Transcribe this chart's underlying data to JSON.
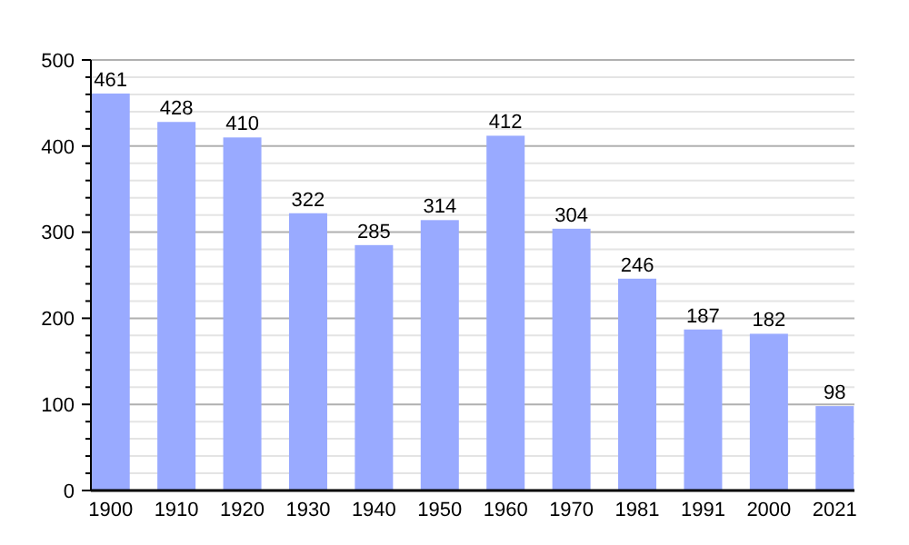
{
  "chart_data": {
    "type": "bar",
    "categories": [
      "1900",
      "1910",
      "1920",
      "1930",
      "1940",
      "1950",
      "1960",
      "1970",
      "1981",
      "1991",
      "2000",
      "2021"
    ],
    "values": [
      461,
      428,
      410,
      322,
      285,
      314,
      412,
      304,
      246,
      187,
      182,
      98
    ],
    "color": "#99aaff",
    "ylim": [
      0,
      500
    ],
    "yticks": [
      0,
      {
        "value": 20,
        "label": null
      },
      {
        "value": 40,
        "label": null
      },
      {
        "value": 60,
        "label": null
      },
      {
        "value": 80,
        "label": null
      },
      100,
      {
        "value": 120,
        "label": null
      },
      {
        "value": 140,
        "label": null
      },
      {
        "value": 160,
        "label": null
      },
      {
        "value": 180,
        "label": null
      },
      200,
      {
        "value": 220,
        "label": null
      },
      {
        "value": 240,
        "label": null
      },
      {
        "value": 260,
        "label": null
      },
      {
        "value": 280,
        "label": null
      },
      300,
      {
        "value": 320,
        "label": null
      },
      {
        "value": 340,
        "label": null
      },
      {
        "value": 360,
        "label": null
      },
      {
        "value": 380,
        "label": null
      },
      400,
      {
        "value": 420,
        "label": null
      },
      {
        "value": 440,
        "label": null
      },
      {
        "value": 460,
        "label": null
      },
      {
        "value": 480,
        "label": null
      },
      500
    ],
    "grid": true,
    "data_labels": true
  }
}
